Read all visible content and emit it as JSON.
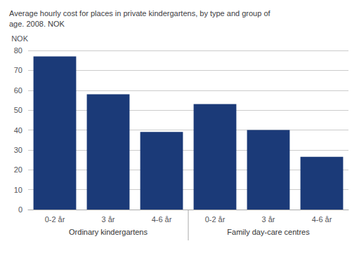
{
  "chart_data": {
    "type": "bar",
    "title": "Average hourly cost for places in private kindergartens, by type and group of\nage. 2008. NOK",
    "y_label": "NOK",
    "categories": [
      "0-2 år",
      "3 år",
      "4-6 år",
      "0-2 år",
      "3 år",
      "4-6 år"
    ],
    "values": [
      77,
      58,
      39,
      53,
      40,
      26.5
    ],
    "color": "#1B3A78",
    "groups": [
      {
        "name": "Ordinary kindergartens",
        "count": 3
      },
      {
        "name": "Family day-care centres",
        "count": 3
      }
    ],
    "ylim": [
      0,
      80
    ],
    "yticks": [
      0,
      10,
      20,
      30,
      40,
      50,
      60,
      70,
      80
    ],
    "grid": true
  }
}
